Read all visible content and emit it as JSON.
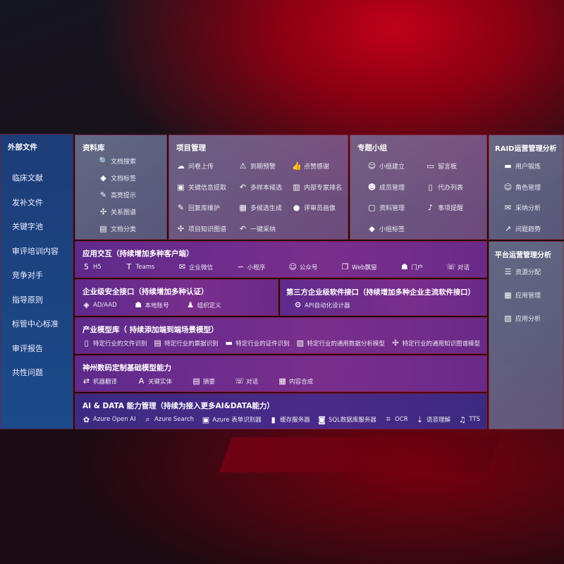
{
  "external": {
    "title": "外部文件",
    "items": [
      "临床文献",
      "发补文件",
      "关键字池",
      "审评培训内容",
      "竞争对手",
      "指导原则",
      "标管中心标准",
      "审评报告",
      "共性问题"
    ]
  },
  "library": {
    "title": "资料库",
    "items": [
      {
        "icon": "doc-search-icon",
        "label": "文档搜索"
      },
      {
        "icon": "tag-icon",
        "label": "文档标签"
      },
      {
        "icon": "pen-icon",
        "label": "高亮提示"
      },
      {
        "icon": "graph-icon",
        "label": "关系图谱"
      },
      {
        "icon": "doc-classify-icon",
        "label": "文档分类"
      }
    ]
  },
  "project": {
    "title": "项目管理",
    "items": [
      {
        "icon": "cloud-upload-icon",
        "label": "问卷上传"
      },
      {
        "icon": "alarm-icon",
        "label": "到期预警"
      },
      {
        "icon": "thumbs-up-icon",
        "label": "点赞感谢"
      },
      {
        "icon": "extract-icon",
        "label": "关键信息提取"
      },
      {
        "icon": "reply-icon",
        "label": "多样本候选"
      },
      {
        "icon": "ranking-icon",
        "label": "内部专家排名"
      },
      {
        "icon": "edit-icon",
        "label": "回复库维护"
      },
      {
        "icon": "puzzle-icon",
        "label": "多候选生成"
      },
      {
        "icon": "user-icon",
        "label": "评审员画像"
      },
      {
        "icon": "graph-icon",
        "label": "项目知识图谱"
      },
      {
        "icon": "reply-icon",
        "label": "一键采纳"
      }
    ]
  },
  "group": {
    "title": "专题小组",
    "items": [
      {
        "icon": "group-icon",
        "label": "小组建立"
      },
      {
        "icon": "bbs-icon",
        "label": "留言板"
      },
      {
        "icon": "member-icon",
        "label": "成员管理"
      },
      {
        "icon": "clipboard-icon",
        "label": "代办列表"
      },
      {
        "icon": "folder-icon",
        "label": "资料管理"
      },
      {
        "icon": "bell-icon",
        "label": "事项提醒"
      },
      {
        "icon": "tag-icon",
        "label": "小组标签"
      }
    ]
  },
  "raid": {
    "title": "RAID运营管理分析",
    "items": [
      {
        "icon": "id-card-icon",
        "label": "用户锻炼"
      },
      {
        "icon": "group-icon",
        "label": "角色管理"
      },
      {
        "icon": "qa-icon",
        "label": "采纳分析"
      },
      {
        "icon": "trend-icon",
        "label": "问题趋势"
      }
    ]
  },
  "platform": {
    "title": "平台运营管理分析",
    "items": [
      {
        "icon": "list-icon",
        "label": "资源分配"
      },
      {
        "icon": "apps-icon",
        "label": "应用管理"
      },
      {
        "icon": "chart-icon",
        "label": "应用分析"
      }
    ]
  },
  "app": {
    "title": "应用交互（持续增加多种客户端）",
    "items": [
      {
        "icon": "html5-icon",
        "label": "H5"
      },
      {
        "icon": "teams-icon",
        "label": "Teams"
      },
      {
        "icon": "wechat-icon",
        "label": "企业微信"
      },
      {
        "icon": "miniprogram-icon",
        "label": "小程序"
      },
      {
        "icon": "group-icon",
        "label": "公众号"
      },
      {
        "icon": "window-icon",
        "label": "Web飘窗"
      },
      {
        "icon": "portal-icon",
        "label": "门户"
      },
      {
        "icon": "chat-icon",
        "label": "对话"
      }
    ]
  },
  "security": {
    "title": "企业级安全接口（持续增加多种认证）",
    "items": [
      {
        "icon": "ad-icon",
        "label": "AD/AAD"
      },
      {
        "icon": "account-icon",
        "label": "本地账号"
      },
      {
        "icon": "org-icon",
        "label": "组织定义"
      }
    ]
  },
  "thirdparty": {
    "title": "第三方企业级软件接口（持续增加多种企业主流软件接口）",
    "items": [
      {
        "icon": "gear-icon",
        "label": "API自动化设计器"
      }
    ]
  },
  "industry": {
    "title": "产业模型库（ 持续添加端到端场景模型）",
    "items": [
      {
        "icon": "file-icon",
        "label": "特定行业的文件识别"
      },
      {
        "icon": "receipt-icon",
        "label": "特定行业的票据识别"
      },
      {
        "icon": "id-card-icon",
        "label": "特定行业的证件识别"
      },
      {
        "icon": "analysis-icon",
        "label": "特定行业的通用数据分析模型"
      },
      {
        "icon": "graph-icon",
        "label": "特定行业的通用知识图谱模型"
      }
    ]
  },
  "base": {
    "title": "神州数码定制基础模型能力",
    "items": [
      {
        "icon": "translate-icon",
        "label": "机器翻译"
      },
      {
        "icon": "entity-icon",
        "label": "关键实体"
      },
      {
        "icon": "summary-icon",
        "label": "摘要"
      },
      {
        "icon": "chat-icon",
        "label": "对话"
      },
      {
        "icon": "puzzle-icon",
        "label": "内容合成"
      }
    ]
  },
  "aidata": {
    "title": "AI & DATA 能力管理（持续为接入更多AI&DATA能力）",
    "items": [
      {
        "icon": "openai-icon",
        "label": "Azure Open AI"
      },
      {
        "icon": "search-icon",
        "label": "Azure Search"
      },
      {
        "icon": "form-icon",
        "label": "Azure 表单识别器"
      },
      {
        "icon": "cache-icon",
        "label": "缓存服务器"
      },
      {
        "icon": "sql-icon",
        "label": "SQL数据库服务器"
      },
      {
        "icon": "ocr-icon",
        "label": "OCR"
      },
      {
        "icon": "speech-icon",
        "label": "语音理解"
      },
      {
        "icon": "tts-icon",
        "label": "TTS"
      }
    ]
  }
}
